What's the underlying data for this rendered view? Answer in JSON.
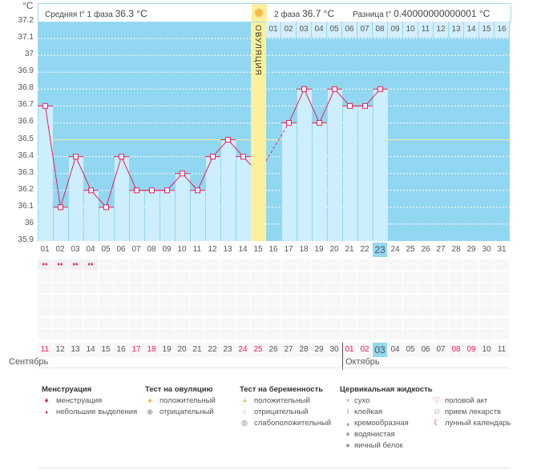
{
  "unit_label": "°C",
  "header": {
    "phase1_label": "Средняя t° 1 фаза",
    "phase1_value": "36.3 °C",
    "phase2_label": "2 фаза",
    "phase2_value": "36.7 °C",
    "diff_label": "Разница t°",
    "diff_value": "0.40000000000001 °C"
  },
  "ovulation_label": "ОВУЛЯЦИЯ",
  "y_ticks": [
    "37.2",
    "37.1",
    "37",
    "36.9",
    "36.8",
    "36.7",
    "36.6",
    "36.5",
    "36.4",
    "36.3",
    "36.2",
    "36.1",
    "36",
    "35.9"
  ],
  "cycle_days": [
    "01",
    "02",
    "03",
    "04",
    "05",
    "06",
    "07",
    "08",
    "09",
    "10",
    "11",
    "12",
    "13",
    "14",
    "15",
    "16",
    "17",
    "18",
    "19",
    "20",
    "21",
    "22",
    "23",
    "24",
    "25",
    "26",
    "27",
    "28",
    "29",
    "30",
    "31"
  ],
  "phase2_days": [
    "01",
    "02",
    "03",
    "04",
    "05",
    "06",
    "07",
    "08",
    "09",
    "10",
    "11",
    "12",
    "13",
    "14",
    "15",
    "16"
  ],
  "current_day_index": 22,
  "ovulation_day_index": 14,
  "chart_data": {
    "type": "line",
    "x": [
      1,
      2,
      3,
      4,
      5,
      6,
      7,
      8,
      9,
      10,
      11,
      12,
      13,
      14,
      15,
      16,
      17,
      18,
      19,
      20,
      21,
      22,
      23
    ],
    "values": [
      36.7,
      36.1,
      36.4,
      36.2,
      36.1,
      36.4,
      36.2,
      36.2,
      36.2,
      36.3,
      36.2,
      36.4,
      36.5,
      36.4,
      36.3,
      null,
      36.6,
      36.8,
      36.6,
      36.8,
      36.7,
      36.7,
      36.8
    ],
    "ylim": [
      35.9,
      37.2
    ],
    "coverline": 36.5,
    "ylabel": "°C"
  },
  "menstruation_days": [
    1,
    2,
    3,
    4
  ],
  "dates": [
    {
      "d": "11",
      "r": true
    },
    {
      "d": "12"
    },
    {
      "d": "13"
    },
    {
      "d": "14"
    },
    {
      "d": "15"
    },
    {
      "d": "16"
    },
    {
      "d": "17",
      "r": true
    },
    {
      "d": "18",
      "r": true
    },
    {
      "d": "19"
    },
    {
      "d": "20"
    },
    {
      "d": "21"
    },
    {
      "d": "22"
    },
    {
      "d": "23"
    },
    {
      "d": "24",
      "r": true
    },
    {
      "d": "25",
      "r": true
    },
    {
      "d": "26"
    },
    {
      "d": "27"
    },
    {
      "d": "28"
    },
    {
      "d": "29"
    },
    {
      "d": "30"
    },
    {
      "d": "01",
      "r": true
    },
    {
      "d": "02",
      "r": true
    },
    {
      "d": "03",
      "cur": true
    },
    {
      "d": "04"
    },
    {
      "d": "05"
    },
    {
      "d": "06"
    },
    {
      "d": "07"
    },
    {
      "d": "08",
      "r": true
    },
    {
      "d": "09",
      "r": true
    },
    {
      "d": "10"
    },
    {
      "d": "11"
    }
  ],
  "months": {
    "m1": "Сентябрь",
    "m2": "Октябрь"
  },
  "legend": {
    "menstr": {
      "title": "Менструация",
      "items": [
        "менструация",
        "небольшие выделения"
      ]
    },
    "ovtest": {
      "title": "Тест на овуляцию",
      "items": [
        "положительный",
        "отрицательный"
      ]
    },
    "pregtest": {
      "title": "Тест на беременность",
      "items": [
        "положительный",
        "отрицательный",
        "слабоположительный"
      ]
    },
    "cerv": {
      "title": "Цервикальная жидкость",
      "items": [
        "сухо",
        "клейкая",
        "кремообразная",
        "водянистая",
        "яичный белок"
      ]
    },
    "other": {
      "items": [
        "половой акт",
        "прием лекарств",
        "лунный календарь"
      ]
    }
  },
  "colors": {
    "plot": "#92d7f2",
    "bar": "#cdeefc",
    "line": "#ec1f5b",
    "ovulation": "#fdf09a",
    "red_date": "#ec1f5b",
    "current": "#92d7f2"
  }
}
